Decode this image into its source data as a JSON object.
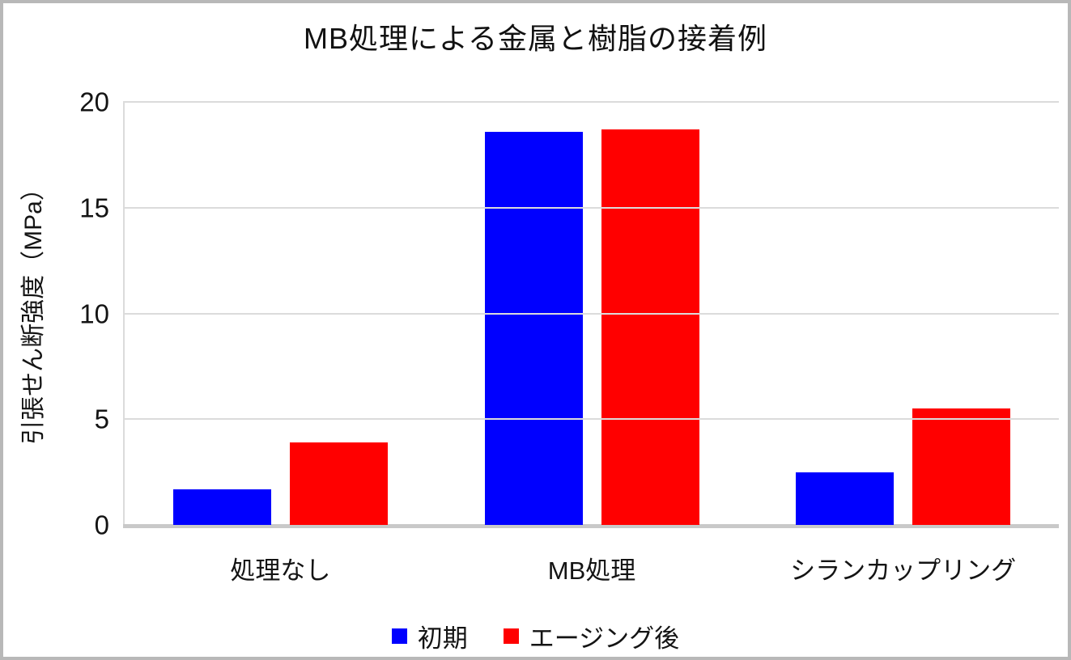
{
  "title": "MB処理による金属と樹脂の接着例",
  "y_axis_label": "引張せん断強度（MPa）",
  "colors": {
    "series_initial": "#0000ff",
    "series_aged": "#ff0000",
    "gridline": "#dbdbdb",
    "baseline": "#c9c9c9",
    "frame_border": "#b8b8b8",
    "text": "#141414"
  },
  "chart_data": {
    "type": "bar",
    "title": "MB処理による金属と樹脂の接着例",
    "xlabel": "",
    "ylabel": "引張せん断強度（MPa）",
    "categories": [
      "処理なし",
      "MB処理",
      "シランカップリング"
    ],
    "series": [
      {
        "name": "初期",
        "color": "#0000ff",
        "values": [
          1.7,
          18.6,
          2.5
        ]
      },
      {
        "name": "エージング後",
        "color": "#ff0000",
        "values": [
          3.9,
          18.7,
          5.5
        ]
      }
    ],
    "ylim": [
      0,
      20
    ],
    "yticks": [
      0,
      5,
      10,
      15,
      20
    ],
    "grid": true,
    "legend_position": "bottom"
  }
}
